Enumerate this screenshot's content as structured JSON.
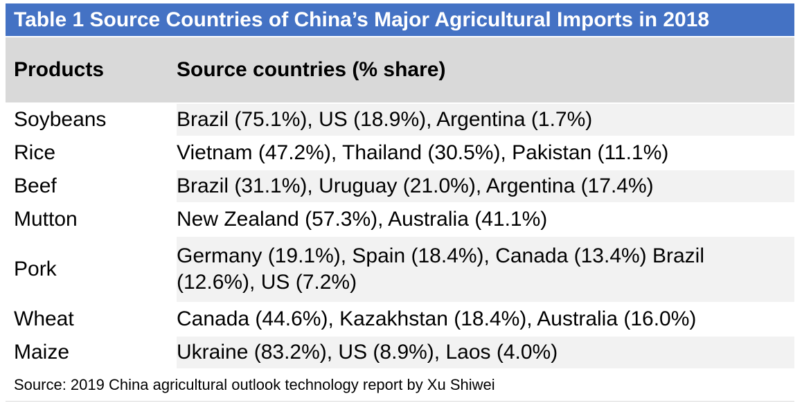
{
  "title": "Table 1 Source Countries of China’s Major Agricultural Imports in 2018",
  "headers": {
    "products": "Products",
    "sources": "Source countries (% share)"
  },
  "rows": [
    {
      "product": "Soybeans",
      "sources": "Brazil (75.1%), US (18.9%), Argentina (1.7%)"
    },
    {
      "product": "Rice",
      "sources": "Vietnam (47.2%), Thailand (30.5%), Pakistan (11.1%)"
    },
    {
      "product": "Beef",
      "sources": "Brazil (31.1%), Uruguay (21.0%), Argentina (17.4%)"
    },
    {
      "product": "Mutton",
      "sources": "New Zealand (57.3%), Australia (41.1%)"
    },
    {
      "product": "Pork",
      "sources": "Germany (19.1%), Spain (18.4%), Canada (13.4%) Brazil (12.6%), US (7.2%)"
    },
    {
      "product": "Wheat",
      "sources": "Canada (44.6%), Kazakhstan (18.4%), Australia (16.0%)"
    },
    {
      "product": "Maize",
      "sources": "Ukraine (83.2%), US (8.9%), Laos (4.0%)"
    }
  ],
  "source_note": "Source: 2019 China agricultural outlook technology report by Xu Shiwei",
  "colors": {
    "title_bg": "#4472c4",
    "header_bg": "#d9d9d9",
    "alt_row_bg": "#f2f2f2"
  }
}
